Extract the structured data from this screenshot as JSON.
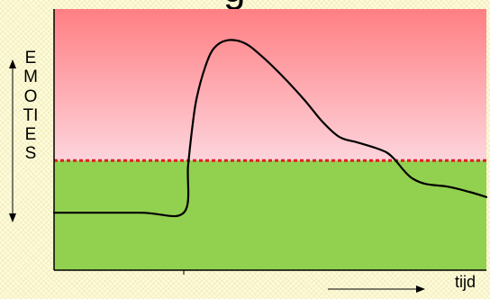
{
  "chart_data": {
    "type": "line",
    "title_fragment": "g",
    "ylabel": "EMOTIES",
    "xlabel": "tijd",
    "threshold": 0.42,
    "zones": {
      "above_color_top": "#ff7f83",
      "above_color_bottom": "#fdd4dc",
      "below_color": "#92d050",
      "threshold_color": "#e31b23"
    },
    "series": [
      {
        "values": [
          [
            0.0,
            0.22
          ],
          [
            0.2,
            0.22
          ],
          [
            0.3,
            0.22
          ],
          [
            0.31,
            0.4
          ],
          [
            0.32,
            0.55
          ],
          [
            0.33,
            0.66
          ],
          [
            0.35,
            0.78
          ],
          [
            0.37,
            0.85
          ],
          [
            0.4,
            0.88
          ],
          [
            0.44,
            0.87
          ],
          [
            0.48,
            0.82
          ],
          [
            0.53,
            0.74
          ],
          [
            0.58,
            0.65
          ],
          [
            0.62,
            0.57
          ],
          [
            0.66,
            0.51
          ],
          [
            0.7,
            0.49
          ],
          [
            0.74,
            0.47
          ],
          [
            0.77,
            0.45
          ],
          [
            0.79,
            0.42
          ],
          [
            0.81,
            0.38
          ],
          [
            0.83,
            0.35
          ],
          [
            0.86,
            0.33
          ],
          [
            0.91,
            0.32
          ],
          [
            0.96,
            0.3
          ],
          [
            1.0,
            0.28
          ]
        ]
      }
    ],
    "ticks": {
      "x": [
        0.3
      ]
    }
  }
}
